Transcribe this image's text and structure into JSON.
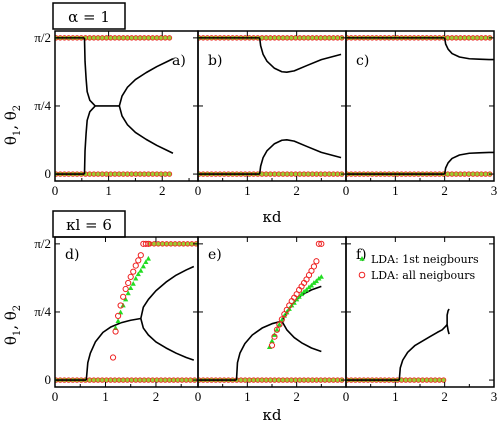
{
  "figure": {
    "top_box_label": "α = 1",
    "bottom_box_label": "κl = 6",
    "ylabel": "θ",
    "ylabel_sub1": "1",
    "ylabel_sub2": "2",
    "ylabel_sep": ", ",
    "xlabel": "κd",
    "colors": {
      "curve": "#000000",
      "lda_1st": "#22dd22",
      "lda_all": "#ee2222",
      "fill_1st_band": "#9acd32"
    }
  },
  "chart_data": [
    {
      "panel": "a)",
      "type": "line",
      "xlim": [
        0,
        2.667
      ],
      "ylim": [
        -0.08,
        1.65
      ],
      "yticks": [
        0,
        0.7854,
        1.5708
      ],
      "ytick_labels": [
        "0",
        "π/4",
        "π/2"
      ],
      "xticks": [
        0,
        1,
        2
      ],
      "xtick_labels": [
        "0",
        "1",
        "2"
      ],
      "series": [
        {
          "name": "",
          "style": "curve",
          "x": [
            0.02,
            0.55
          ],
          "y": [
            1.5708,
            1.5708
          ]
        },
        {
          "name": "",
          "style": "curve",
          "x": [
            0.02,
            0.55
          ],
          "y": [
            0,
            0
          ]
        },
        {
          "name": "",
          "style": "curve",
          "x": [
            0.55,
            0.56,
            0.58,
            0.6,
            0.65,
            0.75
          ],
          "y": [
            1.5708,
            1.3,
            1.1,
            0.95,
            0.85,
            0.7854
          ]
        },
        {
          "name": "",
          "style": "curve",
          "x": [
            0.55,
            0.56,
            0.58,
            0.6,
            0.65,
            0.75
          ],
          "y": [
            0,
            0.27,
            0.47,
            0.62,
            0.72,
            0.7854
          ]
        },
        {
          "name": "",
          "style": "curve",
          "x": [
            0.75,
            1.2
          ],
          "y": [
            0.7854,
            0.7854
          ]
        },
        {
          "name": "",
          "style": "curve",
          "x": [
            1.2,
            1.25,
            1.35,
            1.5,
            1.7,
            1.9,
            2.1,
            2.2
          ],
          "y": [
            0.7854,
            0.9,
            1.0,
            1.09,
            1.17,
            1.24,
            1.3,
            1.33
          ]
        },
        {
          "name": "",
          "style": "curve",
          "x": [
            1.2,
            1.25,
            1.35,
            1.5,
            1.7,
            1.9,
            2.1,
            2.2
          ],
          "y": [
            0.7854,
            0.67,
            0.57,
            0.48,
            0.4,
            0.33,
            0.27,
            0.24
          ]
        },
        {
          "name": "",
          "style": "band",
          "x": [
            0.02,
            2.2
          ],
          "y": [
            1.5708,
            1.5708
          ]
        },
        {
          "name": "",
          "style": "band",
          "x": [
            0.02,
            2.2
          ],
          "y": [
            0,
            0
          ]
        }
      ]
    },
    {
      "panel": "b)",
      "type": "line",
      "xlim": [
        0,
        3
      ],
      "ylim": [
        -0.08,
        1.65
      ],
      "yticks": [
        0,
        0.7854,
        1.5708
      ],
      "xticks": [
        0,
        1,
        2
      ],
      "xtick_labels": [
        "0",
        "1",
        "2"
      ],
      "series": [
        {
          "name": "",
          "style": "curve",
          "x": [
            0.02,
            1.25
          ],
          "y": [
            1.5708,
            1.5708
          ]
        },
        {
          "name": "",
          "style": "curve",
          "x": [
            0.02,
            1.25
          ],
          "y": [
            0,
            0
          ]
        },
        {
          "name": "",
          "style": "curve",
          "x": [
            1.25,
            1.27,
            1.32,
            1.4,
            1.55,
            1.7,
            1.8,
            1.95,
            2.2,
            2.5,
            2.9
          ],
          "y": [
            1.5708,
            1.48,
            1.38,
            1.3,
            1.22,
            1.18,
            1.175,
            1.19,
            1.25,
            1.32,
            1.38
          ]
        },
        {
          "name": "",
          "style": "curve",
          "x": [
            1.25,
            1.27,
            1.32,
            1.4,
            1.55,
            1.7,
            1.8,
            1.95,
            2.2,
            2.5,
            2.9
          ],
          "y": [
            0,
            0.09,
            0.19,
            0.27,
            0.35,
            0.39,
            0.395,
            0.38,
            0.32,
            0.25,
            0.19
          ]
        },
        {
          "name": "",
          "style": "band",
          "x": [
            0.02,
            2.97
          ],
          "y": [
            1.5708,
            1.5708
          ]
        },
        {
          "name": "",
          "style": "band",
          "x": [
            0.02,
            2.97
          ],
          "y": [
            0,
            0
          ]
        }
      ]
    },
    {
      "panel": "c)",
      "type": "line",
      "xlim": [
        0,
        3
      ],
      "ylim": [
        -0.08,
        1.65
      ],
      "yticks": [
        0,
        0.7854,
        1.5708
      ],
      "xticks": [
        0,
        1,
        2,
        3
      ],
      "xtick_labels": [
        "0",
        "1",
        "2",
        "3"
      ],
      "series": [
        {
          "name": "",
          "style": "curve",
          "x": [
            0.02,
            2.0
          ],
          "y": [
            1.5708,
            1.5708
          ]
        },
        {
          "name": "",
          "style": "curve",
          "x": [
            0.02,
            2.0
          ],
          "y": [
            0,
            0
          ]
        },
        {
          "name": "",
          "style": "curve",
          "x": [
            2.0,
            2.02,
            2.07,
            2.15,
            2.3,
            2.5,
            2.7,
            2.9,
            3.0
          ],
          "y": [
            1.5708,
            1.5,
            1.44,
            1.39,
            1.35,
            1.33,
            1.325,
            1.32,
            1.32
          ]
        },
        {
          "name": "",
          "style": "curve",
          "x": [
            2.0,
            2.02,
            2.07,
            2.15,
            2.3,
            2.5,
            2.7,
            2.9,
            3.0
          ],
          "y": [
            0,
            0.07,
            0.13,
            0.18,
            0.22,
            0.24,
            0.245,
            0.25,
            0.25
          ]
        },
        {
          "name": "",
          "style": "band",
          "x": [
            0.02,
            2.98
          ],
          "y": [
            1.5708,
            1.5708
          ]
        },
        {
          "name": "",
          "style": "band",
          "x": [
            0.02,
            2.98
          ],
          "y": [
            0,
            0
          ]
        }
      ]
    },
    {
      "panel": "d)",
      "type": "line",
      "xlim": [
        0,
        2.833
      ],
      "ylim": [
        -0.08,
        1.65
      ],
      "yticks": [
        0,
        0.7854,
        1.5708
      ],
      "ytick_labels": [
        "0",
        "π/4",
        "π/2"
      ],
      "xticks": [
        0,
        1,
        2
      ],
      "xtick_labels": [
        "0",
        "1",
        "2"
      ],
      "series": [
        {
          "name": "",
          "style": "curve",
          "x": [
            0.02,
            0.62
          ],
          "y": [
            0,
            0
          ]
        },
        {
          "name": "",
          "style": "curve",
          "x": [
            0.62,
            0.65,
            0.7,
            0.8,
            0.95,
            1.1,
            1.3,
            1.5,
            1.7
          ],
          "y": [
            0,
            0.2,
            0.31,
            0.44,
            0.55,
            0.61,
            0.66,
            0.69,
            0.71
          ]
        },
        {
          "name": "",
          "style": "curve",
          "x": [
            1.7,
            1.75,
            1.85,
            2.0,
            2.2,
            2.4,
            2.6,
            2.75
          ],
          "y": [
            0.71,
            0.84,
            0.93,
            1.03,
            1.13,
            1.21,
            1.27,
            1.31
          ]
        },
        {
          "name": "",
          "style": "curve",
          "x": [
            1.7,
            1.75,
            1.85,
            2.0,
            2.2,
            2.4,
            2.6,
            2.75
          ],
          "y": [
            0.71,
            0.6,
            0.52,
            0.44,
            0.37,
            0.31,
            0.26,
            0.23
          ]
        },
        {
          "name": "",
          "style": "band",
          "x": [
            0.02,
            2.8
          ],
          "y": [
            0,
            0
          ]
        },
        {
          "name": "",
          "style": "band",
          "x": [
            1.88,
            2.8
          ],
          "y": [
            1.5708,
            1.5708
          ]
        },
        {
          "name": "LDA: 1st neigbours",
          "style": "tri",
          "x": [
            1.2,
            1.25,
            1.3,
            1.35,
            1.4,
            1.45,
            1.5,
            1.55,
            1.6,
            1.65,
            1.7,
            1.75,
            1.8,
            1.85
          ],
          "y": [
            0.6,
            0.68,
            0.78,
            0.86,
            0.93,
            1.0,
            1.06,
            1.11,
            1.17,
            1.22,
            1.26,
            1.31,
            1.36,
            1.4
          ]
        },
        {
          "name": "LDA: all neigbours",
          "style": "circ",
          "x": [
            1.15,
            1.2,
            1.25,
            1.3,
            1.35,
            1.4,
            1.45,
            1.5,
            1.55,
            1.6,
            1.65,
            1.7,
            1.75,
            1.8,
            1.85
          ],
          "y": [
            0.26,
            0.56,
            0.74,
            0.86,
            0.96,
            1.05,
            1.12,
            1.19,
            1.25,
            1.32,
            1.38,
            1.44,
            1.5708,
            1.5708,
            1.5708
          ]
        }
      ]
    },
    {
      "panel": "e)",
      "type": "line",
      "xlim": [
        0,
        3
      ],
      "ylim": [
        -0.08,
        1.65
      ],
      "yticks": [
        0,
        0.7854,
        1.5708
      ],
      "xticks": [
        0,
        1,
        2
      ],
      "xtick_labels": [
        "0",
        "1",
        "2"
      ],
      "series": [
        {
          "name": "",
          "style": "curve",
          "x": [
            0.02,
            0.78
          ],
          "y": [
            0,
            0
          ]
        },
        {
          "name": "",
          "style": "curve",
          "x": [
            0.78,
            0.8,
            0.85,
            0.95,
            1.1,
            1.3,
            1.5,
            1.7
          ],
          "y": [
            0,
            0.2,
            0.31,
            0.42,
            0.52,
            0.6,
            0.65,
            0.68
          ]
        },
        {
          "name": "",
          "style": "curve",
          "x": [
            1.7,
            1.8,
            1.95,
            2.1,
            2.3,
            2.5
          ],
          "y": [
            0.68,
            0.79,
            0.9,
            0.98,
            1.04,
            1.08
          ]
        },
        {
          "name": "",
          "style": "curve",
          "x": [
            1.7,
            1.8,
            1.95,
            2.1,
            2.3,
            2.5
          ],
          "y": [
            0.68,
            0.58,
            0.49,
            0.43,
            0.37,
            0.33
          ]
        },
        {
          "name": "",
          "style": "band",
          "x": [
            0.02,
            2.97
          ],
          "y": [
            0,
            0
          ]
        },
        {
          "name": "LDA: 1st neigbours",
          "style": "tri",
          "x": [
            1.45,
            1.5,
            1.55,
            1.6,
            1.65,
            1.7,
            1.75,
            1.8,
            1.85,
            1.9,
            1.95,
            2.0,
            2.05,
            2.1,
            2.15,
            2.2,
            2.25,
            2.3,
            2.35,
            2.4,
            2.45,
            2.5
          ],
          "y": [
            0.38,
            0.45,
            0.52,
            0.58,
            0.64,
            0.69,
            0.74,
            0.78,
            0.82,
            0.86,
            0.89,
            0.93,
            0.96,
            0.99,
            1.02,
            1.04,
            1.07,
            1.09,
            1.12,
            1.14,
            1.17,
            1.19
          ]
        },
        {
          "name": "LDA: all neigbours",
          "style": "circ",
          "x": [
            1.5,
            1.55,
            1.6,
            1.65,
            1.7,
            1.75,
            1.8,
            1.85,
            1.9,
            1.95,
            2.0,
            2.05,
            2.1,
            2.15,
            2.2,
            2.25,
            2.3,
            2.35,
            2.4,
            2.45,
            2.5
          ],
          "y": [
            0.4,
            0.5,
            0.58,
            0.64,
            0.7,
            0.76,
            0.81,
            0.86,
            0.91,
            0.95,
            0.99,
            1.04,
            1.08,
            1.12,
            1.16,
            1.21,
            1.26,
            1.31,
            1.37,
            1.5708,
            1.5708
          ]
        }
      ]
    },
    {
      "panel": "f)",
      "type": "line",
      "xlim": [
        0,
        3
      ],
      "ylim": [
        -0.08,
        1.65
      ],
      "yticks": [
        0,
        0.7854,
        1.5708
      ],
      "xticks": [
        0,
        1,
        2,
        3
      ],
      "xtick_labels": [
        "0",
        "1",
        "2",
        "3"
      ],
      "legend": {
        "placement": "top-right",
        "entries": [
          "LDA: 1st neigbours",
          "LDA: all neigbours"
        ]
      },
      "series": [
        {
          "name": "",
          "style": "curve",
          "x": [
            0.02,
            1.08
          ],
          "y": [
            0,
            0
          ]
        },
        {
          "name": "",
          "style": "curve",
          "x": [
            1.08,
            1.1,
            1.15,
            1.25,
            1.4,
            1.55,
            1.7,
            1.85,
            1.95,
            2.02,
            2.05
          ],
          "y": [
            0,
            0.14,
            0.23,
            0.32,
            0.4,
            0.45,
            0.5,
            0.55,
            0.58,
            0.62,
            0.64
          ]
        },
        {
          "name": "",
          "style": "curve",
          "x": [
            2.05,
            2.05,
            2.07,
            2.09
          ],
          "y": [
            0.64,
            0.75,
            0.8,
            0.82
          ]
        },
        {
          "name": "",
          "style": "curve",
          "x": [
            2.05,
            2.07,
            2.09
          ],
          "y": [
            0.64,
            0.57,
            0.53
          ]
        },
        {
          "name": "",
          "style": "band",
          "x": [
            0.02,
            2.0
          ],
          "y": [
            0,
            0
          ]
        }
      ]
    }
  ]
}
